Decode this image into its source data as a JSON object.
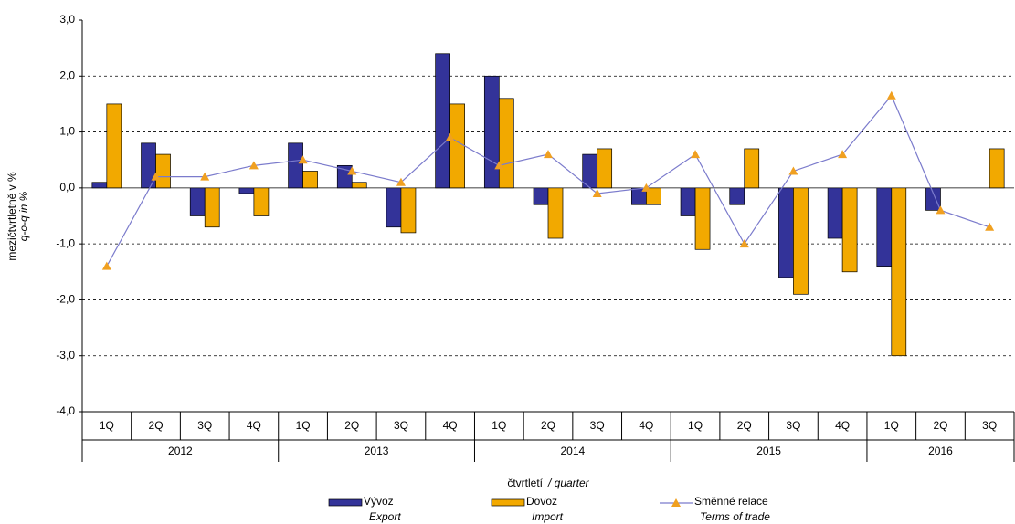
{
  "chart_data": {
    "type": "bar_line",
    "y_label": "mezičtvrtletně v %",
    "y_label_en": "q-o-q in %",
    "x_label": "čtvrtletí",
    "x_label_en": "/ quarter",
    "categories": [
      "1Q",
      "2Q",
      "3Q",
      "4Q",
      "1Q",
      "2Q",
      "3Q",
      "4Q",
      "1Q",
      "2Q",
      "3Q",
      "4Q",
      "1Q",
      "2Q",
      "3Q",
      "4Q",
      "1Q",
      "2Q",
      "3Q"
    ],
    "category_years": [
      "2012",
      "2012",
      "2012",
      "2012",
      "2013",
      "2013",
      "2013",
      "2013",
      "2014",
      "2014",
      "2014",
      "2014",
      "2015",
      "2015",
      "2015",
      "2015",
      "2016",
      "2016",
      "2016"
    ],
    "series": [
      {
        "name": "Vývoz",
        "name_en": "Export",
        "type": "bar",
        "color": "#333399",
        "values": [
          0.1,
          0.8,
          -0.5,
          -0.1,
          0.8,
          0.4,
          -0.7,
          2.4,
          2.0,
          -0.3,
          0.6,
          -0.3,
          -0.5,
          -0.3,
          -1.6,
          -0.9,
          -1.4,
          -0.4,
          null
        ]
      },
      {
        "name": "Dovoz",
        "name_en": "Import",
        "type": "bar",
        "color": "#f2a900",
        "values": [
          1.5,
          0.6,
          -0.7,
          -0.5,
          0.3,
          0.1,
          -0.8,
          1.5,
          1.6,
          -0.9,
          0.7,
          -0.3,
          -1.1,
          0.7,
          -1.9,
          -1.5,
          -3.0,
          null,
          0.7
        ]
      },
      {
        "name": "Směnné relace",
        "name_en": "Terms of trade",
        "type": "line",
        "color": "#7b7bcc",
        "marker_color": "#f0a020",
        "values": [
          -1.4,
          0.2,
          0.2,
          0.4,
          0.5,
          0.3,
          0.1,
          0.9,
          0.4,
          0.6,
          -0.1,
          0.0,
          0.6,
          -1.0,
          0.3,
          0.6,
          1.65,
          -0.4,
          -0.7
        ]
      }
    ],
    "ylim": [
      -4,
      3
    ],
    "yticks": [
      {
        "value": -4,
        "label": "-4,0"
      },
      {
        "value": -3,
        "label": "-3,0"
      },
      {
        "value": -2,
        "label": "-2,0"
      },
      {
        "value": -1,
        "label": "-1,0"
      },
      {
        "value": 0,
        "label": "0,0"
      },
      {
        "value": 1,
        "label": "1,0"
      },
      {
        "value": 2,
        "label": "2,0"
      },
      {
        "value": 3,
        "label": "3,0"
      }
    ],
    "grid": true
  }
}
